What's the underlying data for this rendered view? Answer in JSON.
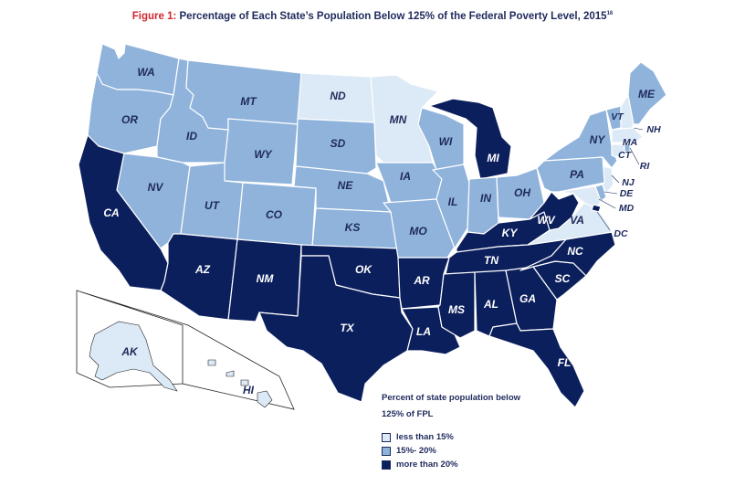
{
  "title": {
    "figure": "Figure 1:",
    "text": " Percentage of Each State’s Population Below 125% of the Federal Poverty Level, 2015",
    "footnote": "16"
  },
  "colors": {
    "low": "#dce9f6",
    "mid": "#8fb3db",
    "high": "#0b1f5c",
    "border": "#ffffff",
    "label_dark": "#1f2a5c",
    "label_light": "#ffffff"
  },
  "legend": {
    "title_line1": "Percent of state population below",
    "title_line2": "125% of FPL",
    "items": [
      {
        "key": "low",
        "label": "less than 15%"
      },
      {
        "key": "mid",
        "label": "15%- 20%"
      },
      {
        "key": "high",
        "label": "more than 20%"
      }
    ]
  },
  "states": {
    "WA": "mid",
    "OR": "mid",
    "CA": "high",
    "ID": "mid",
    "NV": "mid",
    "MT": "mid",
    "WY": "mid",
    "UT": "mid",
    "AZ": "high",
    "CO": "mid",
    "NM": "high",
    "ND": "low",
    "SD": "mid",
    "NE": "mid",
    "KS": "mid",
    "OK": "high",
    "TX": "high",
    "MN": "low",
    "IA": "mid",
    "MO": "mid",
    "AR": "high",
    "LA": "high",
    "WI": "mid",
    "IL": "mid",
    "MI": "high",
    "IN": "mid",
    "OH": "mid",
    "KY": "high",
    "TN": "high",
    "MS": "high",
    "AL": "high",
    "GA": "high",
    "FL": "high",
    "SC": "high",
    "NC": "high",
    "VA": "low",
    "WV": "high",
    "PA": "mid",
    "NY": "mid",
    "ME": "mid",
    "VT": "mid",
    "NH": "low",
    "MA": "low",
    "RI": "mid",
    "CT": "low",
    "NJ": "low",
    "DE": "mid",
    "MD": "low",
    "DC": "high",
    "AK": "low",
    "HI": "low"
  },
  "labels": {
    "WA": "WA",
    "OR": "OR",
    "CA": "CA",
    "ID": "ID",
    "NV": "NV",
    "MT": "MT",
    "WY": "WY",
    "UT": "UT",
    "AZ": "AZ",
    "CO": "CO",
    "NM": "NM",
    "ND": "ND",
    "SD": "SD",
    "NE": "NE",
    "KS": "KS",
    "OK": "OK",
    "TX": "TX",
    "MN": "MN",
    "IA": "IA",
    "MO": "MO",
    "AR": "AR",
    "LA": "LA",
    "WI": "WI",
    "IL": "IL",
    "MI": "MI",
    "IN": "IN",
    "OH": "OH",
    "KY": "KY",
    "TN": "TN",
    "MS": "MS",
    "AL": "AL",
    "GA": "GA",
    "FL": "FL",
    "SC": "SC",
    "NC": "NC",
    "VA": "VA",
    "WV": "WV",
    "PA": "PA",
    "NY": "NY",
    "ME": "ME",
    "VT": "VT",
    "NH": "NH",
    "MA": "MA",
    "RI": "RI",
    "CT": "CT",
    "NJ": "NJ",
    "DE": "DE",
    "MD": "MD",
    "DC": "DC",
    "AK": "AK",
    "HI": "HI"
  }
}
